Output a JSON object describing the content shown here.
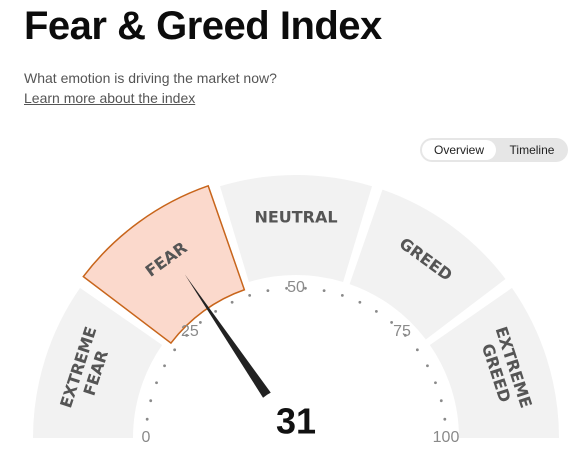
{
  "header": {
    "title": "Fear & Greed Index",
    "subtitle": "What emotion is driving the market now?",
    "learn_more_link": "Learn more about the index"
  },
  "view_toggle": {
    "options": [
      "Overview",
      "Timeline"
    ],
    "selected": "Overview"
  },
  "gauge": {
    "value": 31,
    "value_label": "31",
    "active_segment": "FEAR",
    "segments": [
      {
        "line1": "EXTREME",
        "line2": "FEAR"
      },
      {
        "line1": "FEAR",
        "line2": ""
      },
      {
        "line1": "NEUTRAL",
        "line2": ""
      },
      {
        "line1": "GREED",
        "line2": ""
      },
      {
        "line1": "EXTREME",
        "line2": "GREED"
      }
    ],
    "scale_labels": [
      "0",
      "25",
      "50",
      "75",
      "100"
    ],
    "colors": {
      "segment_fill": "#f2f2f2",
      "active_fill": "#fbd9cc",
      "active_stroke": "#c8651b",
      "needle": "#222222"
    }
  }
}
